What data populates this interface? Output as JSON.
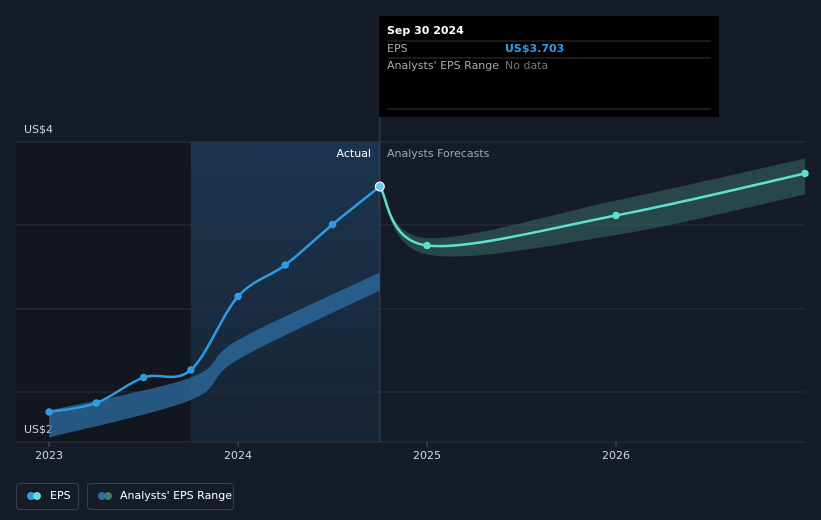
{
  "chart_data": {
    "type": "line",
    "xlim": [
      2022.825,
      2027
    ],
    "xticks": [
      2023,
      2024,
      2025,
      2026
    ],
    "ylim": [
      2,
      4
    ],
    "yticks": [
      {
        "value": 2,
        "label": "US$2"
      },
      {
        "value": 4,
        "label": "US$4"
      }
    ],
    "highlight_xlim": [
      2023.75,
      2024.75
    ],
    "annotations": {
      "actual": "Actual",
      "forecast": "Analysts Forecasts"
    },
    "series": [
      {
        "name": "EPS",
        "color": "#2f9be3",
        "forecast_color": "#5fe0cf",
        "x": [
          2023,
          2023.25,
          2023.5,
          2023.75,
          2024,
          2024.25,
          2024.5,
          2024.75
        ],
        "values": [
          2.2,
          2.26,
          2.43,
          2.48,
          2.97,
          3.18,
          3.45,
          3.703
        ],
        "forecast_x": [
          2024.75,
          2025,
          2026,
          2027
        ],
        "forecast_values": [
          3.703,
          3.31,
          3.51,
          3.79
        ]
      },
      {
        "name": "Analysts' EPS Range",
        "color": "#2d6ea3",
        "forecast_color": "#3e7d72",
        "x": [
          2023,
          2023.75,
          2024,
          2024.75
        ],
        "low": [
          2.03,
          2.28,
          2.55,
          3.01
        ],
        "high": [
          2.21,
          2.43,
          2.68,
          3.13
        ],
        "forecast_x": [
          2024.75,
          2025,
          2026,
          2027
        ],
        "forecast_low": [
          3.703,
          3.25,
          3.38,
          3.65
        ],
        "forecast_high": [
          3.703,
          3.36,
          3.61,
          3.89
        ]
      }
    ],
    "tooltip": {
      "date": "Sep 30 2024",
      "rows": [
        {
          "label": "EPS",
          "value": "US$3.703"
        },
        {
          "label": "Analysts' EPS Range",
          "value": "No data"
        }
      ]
    }
  }
}
